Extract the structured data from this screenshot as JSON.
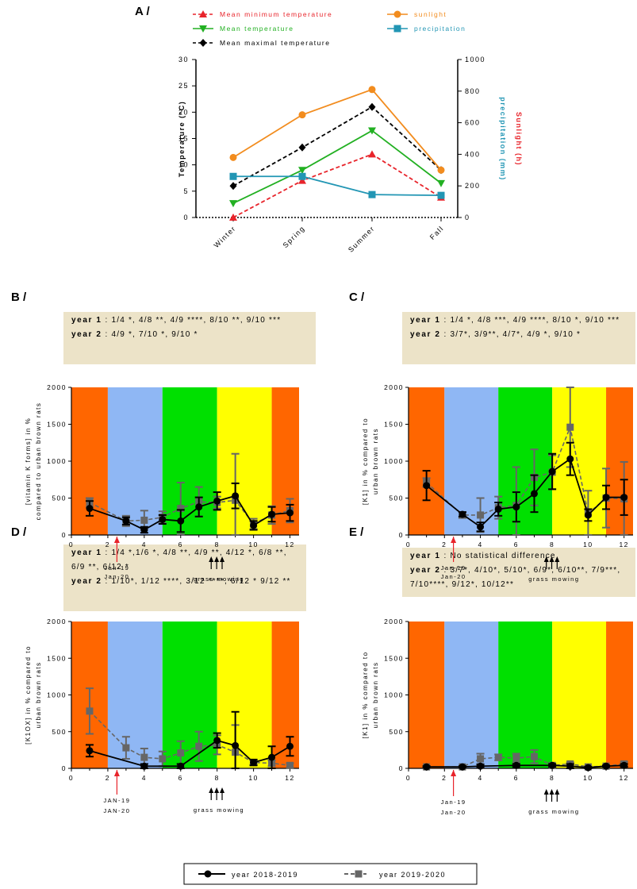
{
  "chart_data": [
    {
      "panel": "A /",
      "type": "line",
      "categories": [
        "Winter",
        "Spring",
        "Summer",
        "Fall"
      ],
      "left_axis": {
        "label": "Temperature (°C)",
        "ylim": [
          0,
          30
        ],
        "ticks": [
          "0",
          "5",
          "10",
          "15",
          "20",
          "25",
          "30"
        ]
      },
      "right_axis": {
        "label_sunlight": "Sunlight (h)",
        "label_precip": "precipitation (mm)",
        "ylim": [
          0,
          1000
        ],
        "ticks": [
          "0",
          "200",
          "400",
          "600",
          "800",
          "1000"
        ]
      },
      "series": [
        {
          "name": "Mean minimum temperature",
          "axis": "left",
          "color": "#e8242b",
          "marker": "triangle",
          "dashed": true,
          "values": [
            0,
            7,
            12,
            3.8
          ]
        },
        {
          "name": "Mean temperature",
          "axis": "left",
          "color": "#22b022",
          "marker": "triangle-down",
          "dashed": false,
          "values": [
            2.7,
            9,
            16.5,
            6.5
          ]
        },
        {
          "name": "Mean maximal temperature",
          "axis": "left",
          "color": "#000000",
          "marker": "diamond",
          "dashed": true,
          "values": [
            6,
            13.3,
            21,
            9
          ]
        },
        {
          "name": "sunlight",
          "axis": "right",
          "color": "#f28c1e",
          "marker": "circle",
          "dashed": false,
          "values": [
            380,
            650,
            810,
            300
          ]
        },
        {
          "name": "precipitation",
          "axis": "right",
          "color": "#2296b4",
          "marker": "square",
          "dashed": false,
          "values": [
            260,
            260,
            145,
            140
          ]
        }
      ]
    },
    {
      "panel": "B /",
      "type": "line",
      "stats": {
        "year1_label": "year 1",
        "year1_text": " : 1/4 *, 4/8 **, 4/9 ****, 8/10 **, 9/10 ***",
        "year2_label": "year 2",
        "year2_text": " : 4/9 *, 7/10 *, 9/10 *"
      },
      "ylabel_lines": [
        "[vitamin K forms] in %",
        "compared to urban brown rats"
      ],
      "xlim": [
        0,
        12.5
      ],
      "ylim": [
        0,
        2000
      ],
      "xticks": [
        "0",
        "2",
        "4",
        "6",
        "8",
        "10",
        "12"
      ],
      "yticks": [
        "0",
        "500",
        "1000",
        "1500",
        "2000"
      ],
      "arrow_labels": [
        "Jan-19",
        "Jan-20"
      ],
      "mowing_label": "grass mowing",
      "series": [
        {
          "name": "year 2018-2019",
          "x": [
            1,
            3,
            4,
            5,
            6,
            7,
            8,
            9,
            10,
            11,
            12
          ],
          "y": [
            360,
            190,
            70,
            210,
            190,
            380,
            460,
            530,
            130,
            280,
            300
          ],
          "err": [
            100,
            50,
            40,
            60,
            150,
            130,
            120,
            170,
            60,
            100,
            110
          ]
        },
        {
          "name": "year 2019-2020",
          "x": [
            1,
            3,
            4,
            5,
            6,
            7,
            8,
            9,
            10,
            11,
            12
          ],
          "y": [
            440,
            190,
            200,
            240,
            360,
            450,
            440,
            470,
            150,
            270,
            330
          ],
          "err": [
            60,
            70,
            130,
            80,
            350,
            200,
            80,
            630,
            70,
            120,
            160
          ]
        }
      ]
    },
    {
      "panel": "C /",
      "type": "line",
      "stats": {
        "year1_label": "year 1",
        "year1_text": " : 1/4 *, 4/8 ***, 4/9 ****, 8/10 *, 9/10 ***",
        "year2_label": "year 2",
        "year2_text": " : 3/7*, 3/9**, 4/7*, 4/9 *, 9/10 *"
      },
      "ylabel_lines": [
        "[K1] in % compared to",
        "urban brown rats"
      ],
      "xlim": [
        0,
        12.5
      ],
      "ylim": [
        0,
        2000
      ],
      "xticks": [
        "0",
        "2",
        "4",
        "6",
        "8",
        "10",
        "12"
      ],
      "yticks": [
        "0",
        "500",
        "1000",
        "1500",
        "2000"
      ],
      "arrow_labels": [
        "Jan-19",
        "Jan-20"
      ],
      "mowing_label": "grass mowing",
      "series": [
        {
          "name": "year 2018-2019",
          "x": [
            1,
            3,
            4,
            5,
            6,
            7,
            8,
            9,
            10,
            11,
            12
          ],
          "y": [
            670,
            280,
            110,
            350,
            380,
            560,
            860,
            1030,
            270,
            510,
            510
          ],
          "err": [
            200,
            30,
            60,
            90,
            200,
            250,
            240,
            220,
            80,
            160,
            240
          ]
        },
        {
          "name": "year 2019-2020",
          "x": [
            1,
            3,
            4,
            5,
            6,
            7,
            8,
            9,
            10,
            11,
            12
          ],
          "y": [
            710,
            270,
            270,
            370,
            400,
            780,
            850,
            1460,
            290,
            500,
            490
          ],
          "err": [
            60,
            40,
            230,
            150,
            520,
            380,
            230,
            540,
            310,
            400,
            500
          ]
        }
      ]
    },
    {
      "panel": "D /",
      "type": "line",
      "stats": {
        "year1_label": "year 1",
        "year1_text": " : 1/4 *,1/6 *, 4/8 **, 4/9 **, 4/12 *, 6/8 **, 6/9 **, 6/12 *",
        "year2_label": "year 2",
        "year2_text": " : 1/10*, 1/12 ****, 3/12 ****, 6/12 * 9/12 **"
      },
      "ylabel_lines": [
        "[K1OX] in % compared to",
        "urban brown rats"
      ],
      "xlim": [
        0,
        12.5
      ],
      "ylim": [
        0,
        2000
      ],
      "xticks": [
        "0",
        "2",
        "4",
        "6",
        "8",
        "10",
        "12"
      ],
      "yticks": [
        "0",
        "500",
        "1000",
        "1500",
        "2000"
      ],
      "arrow_labels": [
        "JAN-19",
        "JAN-20"
      ],
      "mowing_label": "grass mowing",
      "series": [
        {
          "name": "year 2018-2019",
          "x": [
            1,
            4,
            6,
            8,
            9,
            10,
            11,
            12
          ],
          "y": [
            240,
            30,
            30,
            380,
            310,
            80,
            150,
            300
          ],
          "err": [
            80,
            30,
            30,
            100,
            460,
            40,
            150,
            130
          ]
        },
        {
          "name": "year 2019-2020",
          "x": [
            1,
            3,
            4,
            5,
            6,
            7,
            8,
            9,
            10,
            11,
            12
          ],
          "y": [
            780,
            280,
            150,
            130,
            210,
            300,
            320,
            220,
            80,
            70,
            40
          ],
          "err": [
            310,
            150,
            120,
            100,
            160,
            200,
            130,
            370,
            30,
            40,
            30
          ]
        }
      ]
    },
    {
      "panel": "E /",
      "type": "line",
      "stats": {
        "year1_label": "year 1",
        "year1_text": " : No statistical difference",
        "year2_label": "year 2",
        "year2_text": " : 3/7*, 4/10*, 5/10*, 6/9*, 6/10**, 7/9***, 7/10****, 9/12*, 10/12**"
      },
      "ylabel_lines": [
        "[K1] in % compared to",
        "urban brown rats"
      ],
      "xlim": [
        0,
        12.5
      ],
      "ylim": [
        0,
        2000
      ],
      "xticks": [
        "0",
        "2",
        "4",
        "6",
        "8",
        "10",
        "12"
      ],
      "yticks": [
        "0",
        "500",
        "1000",
        "1500",
        "2000"
      ],
      "arrow_labels": [
        "Jan-19",
        "Jan-20"
      ],
      "mowing_label": "grass mowing",
      "series": [
        {
          "name": "year 2018-2019",
          "x": [
            1,
            3,
            4,
            6,
            8,
            9,
            10,
            11,
            12
          ],
          "y": [
            20,
            20,
            30,
            40,
            40,
            30,
            10,
            30,
            40
          ],
          "err": [
            10,
            10,
            20,
            20,
            20,
            30,
            10,
            10,
            20
          ]
        },
        {
          "name": "year 2019-2020",
          "x": [
            1,
            3,
            4,
            5,
            6,
            7,
            8,
            9,
            10,
            11,
            12
          ],
          "y": [
            20,
            20,
            130,
            150,
            140,
            160,
            40,
            60,
            20,
            30,
            60
          ],
          "err": [
            10,
            10,
            70,
            40,
            60,
            90,
            20,
            20,
            10,
            10,
            30
          ]
        }
      ]
    }
  ],
  "season_colors": {
    "winter": "#ff6600",
    "spring": "#8fb7f4",
    "summer": "#00e000",
    "fall": "#ffff00"
  },
  "series_styles": {
    "year1_color": "#000000",
    "year2_color": "#666666"
  },
  "legend": {
    "year1": "year 2018-2019",
    "year2": "year 2019-2020"
  }
}
